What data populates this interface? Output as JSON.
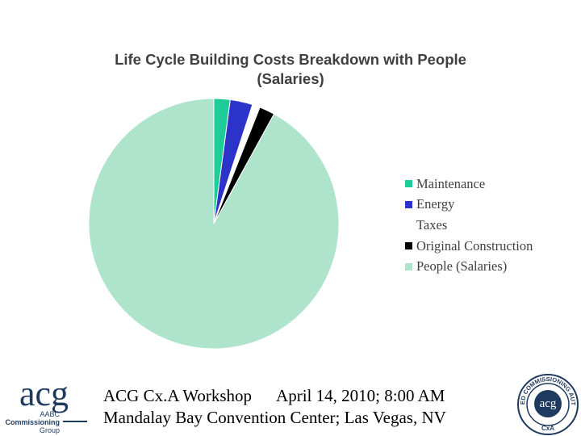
{
  "chart_data": {
    "type": "pie",
    "title": "Life Cycle Building Costs Breakdown with People (Salaries)",
    "title_lines": [
      "Life Cycle Building Costs Breakdown with People",
      "(Salaries)"
    ],
    "categories": [
      "Maintenance",
      "Energy",
      "Taxes",
      "Original Construction",
      "People (Salaries)"
    ],
    "values": [
      2.1,
      2.9,
      1.0,
      2.0,
      92.0
    ],
    "units": "percent (estimated)",
    "colors": [
      "#1fcc99",
      "#2b33c8",
      "#ffffff",
      "#000000",
      "#aee3cc"
    ],
    "legend_position": "right",
    "start_angle_deg": 0,
    "direction": "clockwise"
  },
  "footer": {
    "line1_left": "ACG Cx.A Workshop",
    "line1_right": "April 14, 2010; 8:00 AM",
    "line2": "Mandalay Bay Convention Center; Las Vegas, NV"
  },
  "logo_left": {
    "text": "acg",
    "sub": [
      "AABC",
      "Commissioning",
      "Group"
    ],
    "color": "#1f3a5f"
  },
  "logo_right": {
    "ring_text": "CERTIFIED COMMISSIONING AUTHORITY",
    "center_text": "acg",
    "bottom_text": "CxA",
    "color": "#1f3a5f"
  }
}
